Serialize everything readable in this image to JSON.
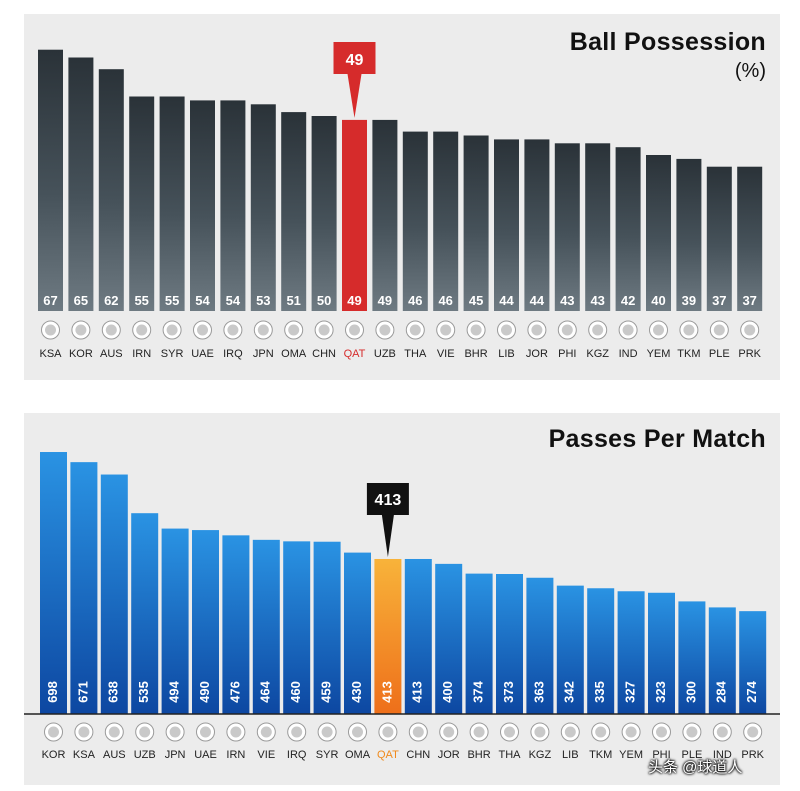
{
  "watermark": "头条 @球道人",
  "colors": {
    "possession_highlight": "#d62b2b",
    "passes_highlight": "#f08a1c",
    "passes_bar": "#1565c0",
    "callout_passes": "#111111"
  },
  "chart_data": [
    {
      "type": "bar",
      "title": "Ball Possession",
      "unit": "(%)",
      "highlight": "QAT",
      "highlight_value": "49",
      "categories": [
        "KSA",
        "KOR",
        "AUS",
        "IRN",
        "SYR",
        "UAE",
        "IRQ",
        "JPN",
        "OMA",
        "CHN",
        "QAT",
        "UZB",
        "THA",
        "VIE",
        "BHR",
        "LIB",
        "JOR",
        "PHI",
        "KGZ",
        "IND",
        "YEM",
        "TKM",
        "PLE",
        "PRK"
      ],
      "values": [
        67,
        65,
        62,
        55,
        55,
        54,
        54,
        53,
        51,
        50,
        49,
        49,
        46,
        46,
        45,
        44,
        44,
        43,
        43,
        42,
        40,
        39,
        37,
        37
      ],
      "ylim": [
        0,
        70
      ]
    },
    {
      "type": "bar",
      "title": "Passes Per Match",
      "highlight": "QAT",
      "highlight_value": "413",
      "categories": [
        "KOR",
        "KSA",
        "AUS",
        "UZB",
        "JPN",
        "UAE",
        "IRN",
        "VIE",
        "IRQ",
        "SYR",
        "OMA",
        "QAT",
        "CHN",
        "JOR",
        "BHR",
        "THA",
        "KGZ",
        "LIB",
        "TKM",
        "YEM",
        "PHI",
        "PLE",
        "IND",
        "PRK"
      ],
      "values": [
        698,
        671,
        638,
        535,
        494,
        490,
        476,
        464,
        460,
        459,
        430,
        413,
        413,
        400,
        374,
        373,
        363,
        342,
        335,
        327,
        323,
        300,
        284,
        274
      ],
      "ylim": [
        0,
        730
      ]
    }
  ]
}
